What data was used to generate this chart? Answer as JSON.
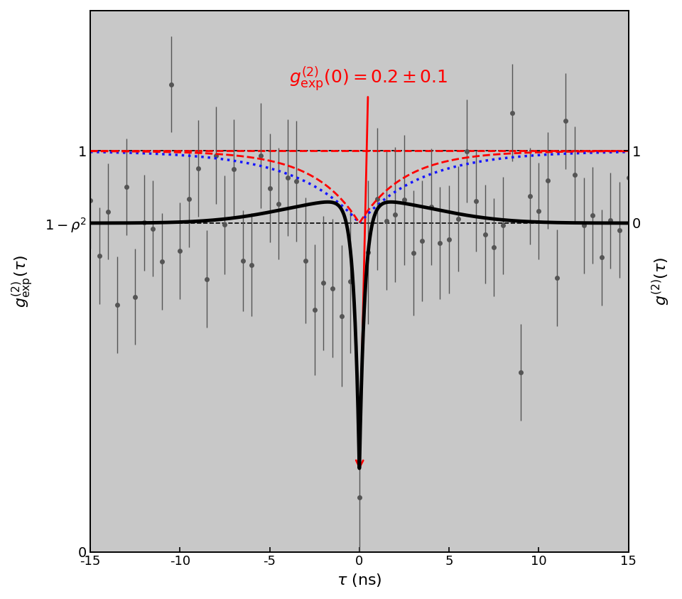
{
  "xlim": [
    -15,
    15
  ],
  "left_ylim": [
    0,
    1.35
  ],
  "xlabel": "\\tau (ns)",
  "rho_sq": 0.18,
  "g0_val": 0.2,
  "data_color": "#555555",
  "blue_color": "#1515ff",
  "red_color": "#ff0000",
  "black_color": "#000000",
  "gray_fill": "#c8c8c8",
  "T_blue": 3.5,
  "T_anti_blue": 0.35,
  "T_red": 2.5,
  "T_anti_red": 0.35,
  "T_black_broad": 4.0,
  "T_black_anti": 0.2,
  "random_seed": 12
}
